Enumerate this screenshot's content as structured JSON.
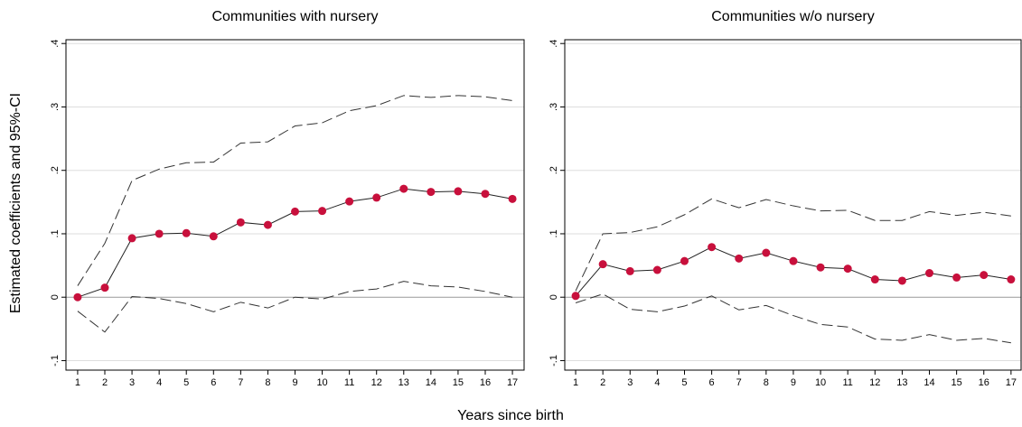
{
  "xlabel": "Years since birth",
  "ylabel": "Estimated coefficients and 95%-CI",
  "chart_data": [
    {
      "type": "line",
      "title": "Communities with nursery",
      "x": [
        1,
        2,
        3,
        4,
        5,
        6,
        7,
        8,
        9,
        10,
        11,
        12,
        13,
        14,
        15,
        16,
        17
      ],
      "xlim": [
        0.57,
        17.43
      ],
      "xticks": [
        1,
        2,
        3,
        4,
        5,
        6,
        7,
        8,
        9,
        10,
        11,
        12,
        13,
        14,
        15,
        16,
        17
      ],
      "ylim": [
        -0.115,
        0.406
      ],
      "yticks": [
        {
          "value": -0.1,
          "label": "-.1"
        },
        0,
        {
          "value": 0.1,
          "label": ".1"
        },
        {
          "value": 0.2,
          "label": ".2"
        },
        {
          "value": 0.3,
          "label": ".3"
        },
        {
          "value": 0.4,
          "label": ".4"
        }
      ],
      "grid": true,
      "series": [
        {
          "color": "#222222",
          "marker_color": "#c8103c",
          "markers": true,
          "dashed": false,
          "values": [
            0,
            0.015,
            0.093,
            0.1,
            0.101,
            0.096,
            0.118,
            0.114,
            0.135,
            0.136,
            0.151,
            0.157,
            0.171,
            0.166,
            0.167,
            0.163,
            0.155
          ]
        },
        {
          "color": "#333333",
          "markers": false,
          "dashed": true,
          "values": [
            0.018,
            0.085,
            0.184,
            0.202,
            0.212,
            0.213,
            0.243,
            0.245,
            0.27,
            0.275,
            0.294,
            0.302,
            0.318,
            0.315,
            0.318,
            0.316,
            0.31
          ]
        },
        {
          "color": "#333333",
          "markers": false,
          "dashed": true,
          "values": [
            -0.022,
            -0.055,
            0.001,
            -0.002,
            -0.01,
            -0.023,
            -0.008,
            -0.017,
            0.0,
            -0.003,
            0.009,
            0.013,
            0.025,
            0.018,
            0.016,
            0.009,
            0.0
          ]
        }
      ]
    },
    {
      "type": "line",
      "title": "Communities w/o nursery",
      "x": [
        1,
        2,
        3,
        4,
        5,
        6,
        7,
        8,
        9,
        10,
        11,
        12,
        13,
        14,
        15,
        16,
        17
      ],
      "xlim": [
        0.6,
        17.37
      ],
      "xticks": [
        1,
        2,
        3,
        4,
        5,
        6,
        7,
        8,
        9,
        10,
        11,
        12,
        13,
        14,
        15,
        16,
        17
      ],
      "ylim": [
        -0.115,
        0.406
      ],
      "yticks": [
        {
          "value": -0.1,
          "label": "-.1"
        },
        0,
        {
          "value": 0.1,
          "label": ".1"
        },
        {
          "value": 0.2,
          "label": ".2"
        },
        {
          "value": 0.3,
          "label": ".3"
        },
        {
          "value": 0.4,
          "label": ".4"
        }
      ],
      "grid": true,
      "series": [
        {
          "color": "#222222",
          "marker_color": "#c8103c",
          "markers": true,
          "dashed": false,
          "values": [
            0.002,
            0.052,
            0.041,
            0.043,
            0.057,
            0.079,
            0.061,
            0.07,
            0.057,
            0.047,
            0.045,
            0.028,
            0.026,
            0.038,
            0.031,
            0.035,
            0.028
          ]
        },
        {
          "color": "#333333",
          "markers": false,
          "dashed": true,
          "values": [
            0.01,
            0.1,
            0.102,
            0.111,
            0.13,
            0.155,
            0.141,
            0.154,
            0.144,
            0.136,
            0.137,
            0.121,
            0.121,
            0.135,
            0.129,
            0.134,
            0.128
          ]
        },
        {
          "color": "#333333",
          "markers": false,
          "dashed": true,
          "values": [
            -0.009,
            0.005,
            -0.019,
            -0.023,
            -0.014,
            0.002,
            -0.02,
            -0.013,
            -0.029,
            -0.043,
            -0.047,
            -0.066,
            -0.068,
            -0.059,
            -0.068,
            -0.065,
            -0.072
          ]
        }
      ]
    }
  ]
}
